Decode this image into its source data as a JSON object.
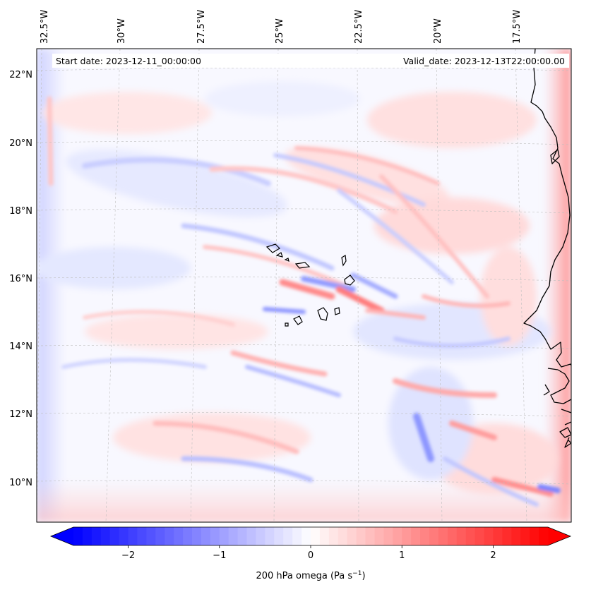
{
  "header": {
    "start_date": "Start date: 2023-12-11_00:00:00",
    "valid_date": "Valid_date: 2023-12-13T22:00:00.00"
  },
  "map": {
    "lon_ticks": [
      "32.5°W",
      "30°W",
      "27.5°W",
      "25°W",
      "22.5°W",
      "20°W",
      "17.5°W"
    ],
    "lat_ticks": [
      "22°N",
      "20°N",
      "18°N",
      "16°N",
      "14°N",
      "12°N",
      "10°N"
    ],
    "lon_range": [
      -33.0,
      -15.5
    ],
    "lat_range": [
      8.9,
      22.8
    ],
    "gridlines": true,
    "coastline_color": "#000000"
  },
  "colorbar": {
    "ticks": [
      "−2",
      "−1",
      "0",
      "1",
      "2"
    ],
    "tick_values": [
      -2,
      -1,
      0,
      1,
      2
    ],
    "range": [
      -2.6,
      2.6
    ],
    "label": "200 hPa omega (Pa s",
    "label_sup": "−1",
    "label_end": ")",
    "extend": "both",
    "low_color": "#0000ff",
    "mid_color": "#ffffff",
    "high_color": "#ff0000"
  }
}
